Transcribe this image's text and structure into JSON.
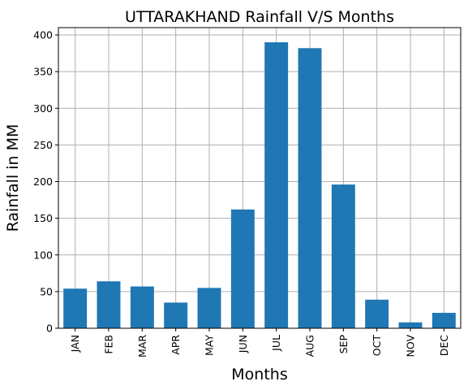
{
  "chart_data": {
    "type": "bar",
    "title": "UTTARAKHAND Rainfall V/S Months",
    "xlabel": "Months",
    "ylabel": "Rainfall in MM",
    "categories": [
      "JAN",
      "FEB",
      "MAR",
      "APR",
      "MAY",
      "JUN",
      "JUL",
      "AUG",
      "SEP",
      "OCT",
      "NOV",
      "DEC"
    ],
    "values": [
      54,
      64,
      57,
      35,
      55,
      162,
      390,
      382,
      196,
      39,
      8,
      21
    ],
    "ylim": [
      0,
      410
    ],
    "yticks": [
      0,
      50,
      100,
      150,
      200,
      250,
      300,
      350,
      400
    ],
    "grid": true,
    "bar_color": "#1f77b4",
    "x_tick_rotation": 90
  }
}
